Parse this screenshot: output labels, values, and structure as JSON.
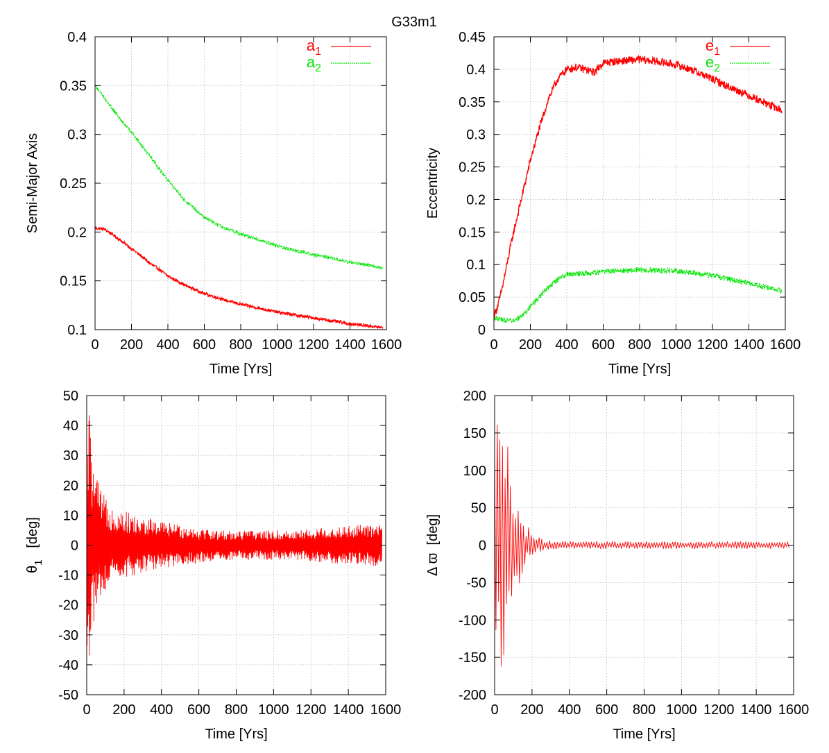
{
  "title": "G33m1",
  "colors": {
    "series_1": "#ff0000",
    "series_2": "#00e600"
  },
  "chart_data": [
    {
      "id": "panel-semi-major-axis",
      "type": "line",
      "title": "",
      "xlabel": "Time [Yrs]",
      "ylabel": "Semi-Major Axis",
      "xlim": [
        0,
        1600
      ],
      "ylim": [
        0.1,
        0.4
      ],
      "xticks": [
        0,
        200,
        400,
        600,
        800,
        1000,
        1200,
        1400,
        1600
      ],
      "yticks": [
        0.1,
        0.15,
        0.2,
        0.25,
        0.3,
        0.35,
        0.4
      ],
      "ytick_labels": [
        "0.1",
        "0.15",
        "0.2",
        "0.25",
        "0.3",
        "0.35",
        "0.4"
      ],
      "grid": true,
      "legend": "top-right",
      "series": [
        {
          "name": "a1",
          "label_main": "a",
          "label_sub": "1",
          "color": "#ff0000",
          "style": "solid",
          "noise": 0.0015,
          "noise_period": 0,
          "x": [
            0,
            50,
            100,
            150,
            200,
            250,
            300,
            350,
            400,
            500,
            600,
            700,
            800,
            900,
            1000,
            1100,
            1200,
            1300,
            1400,
            1500,
            1580
          ],
          "y": [
            0.204,
            0.203,
            0.197,
            0.19,
            0.183,
            0.176,
            0.168,
            0.162,
            0.155,
            0.145,
            0.137,
            0.131,
            0.126,
            0.122,
            0.118,
            0.115,
            0.112,
            0.109,
            0.106,
            0.104,
            0.102
          ]
        },
        {
          "name": "a2",
          "label_main": "a",
          "label_sub": "2",
          "color": "#00e600",
          "style": "dotted",
          "noise": 0.0015,
          "noise_period": 0,
          "x": [
            0,
            50,
            100,
            150,
            200,
            250,
            300,
            350,
            400,
            500,
            600,
            700,
            800,
            900,
            1000,
            1100,
            1200,
            1300,
            1400,
            1500,
            1580
          ],
          "y": [
            0.35,
            0.338,
            0.325,
            0.313,
            0.302,
            0.29,
            0.278,
            0.265,
            0.253,
            0.231,
            0.215,
            0.205,
            0.198,
            0.192,
            0.186,
            0.181,
            0.177,
            0.173,
            0.169,
            0.166,
            0.163
          ]
        }
      ]
    },
    {
      "id": "panel-eccentricity",
      "type": "line",
      "title": "",
      "xlabel": "Time [Yrs]",
      "ylabel": "Eccentricity",
      "xlim": [
        0,
        1600
      ],
      "ylim": [
        0,
        0.45
      ],
      "xticks": [
        0,
        200,
        400,
        600,
        800,
        1000,
        1200,
        1400,
        1600
      ],
      "yticks": [
        0,
        0.05,
        0.1,
        0.15,
        0.2,
        0.25,
        0.3,
        0.35,
        0.4,
        0.45
      ],
      "ytick_labels": [
        "0",
        "0.05",
        "0.1",
        "0.15",
        "0.2",
        "0.25",
        "0.3",
        "0.35",
        "0.4",
        "0.45"
      ],
      "grid": true,
      "legend": "top-right",
      "series": [
        {
          "name": "e1",
          "label_main": "e",
          "label_sub": "1",
          "color": "#ff0000",
          "style": "solid",
          "noise": 0.006,
          "noise_period": 0,
          "x": [
            0,
            25,
            50,
            100,
            150,
            200,
            250,
            300,
            350,
            400,
            450,
            500,
            550,
            600,
            700,
            800,
            900,
            1000,
            1100,
            1200,
            1300,
            1400,
            1500,
            1580
          ],
          "y": [
            0.02,
            0.04,
            0.07,
            0.14,
            0.2,
            0.26,
            0.31,
            0.355,
            0.385,
            0.4,
            0.403,
            0.4,
            0.395,
            0.41,
            0.413,
            0.415,
            0.412,
            0.407,
            0.398,
            0.385,
            0.372,
            0.36,
            0.347,
            0.337
          ]
        },
        {
          "name": "e2",
          "label_main": "e",
          "label_sub": "2",
          "color": "#00e600",
          "style": "dotted",
          "noise": 0.004,
          "noise_period": 0,
          "x": [
            0,
            50,
            100,
            150,
            200,
            250,
            300,
            350,
            400,
            500,
            600,
            700,
            800,
            900,
            1000,
            1100,
            1200,
            1300,
            1400,
            1500,
            1580
          ],
          "y": [
            0.018,
            0.015,
            0.012,
            0.02,
            0.035,
            0.05,
            0.065,
            0.077,
            0.085,
            0.086,
            0.089,
            0.091,
            0.092,
            0.091,
            0.09,
            0.087,
            0.083,
            0.077,
            0.071,
            0.065,
            0.06
          ]
        }
      ]
    },
    {
      "id": "panel-theta1",
      "type": "line",
      "title": "",
      "xlabel": "Time [Yrs]",
      "ylabel_main": "θ",
      "ylabel_sub": "1",
      "ylabel_unit": "[deg]",
      "xlim": [
        0,
        1600
      ],
      "ylim": [
        -50,
        50
      ],
      "xticks": [
        0,
        200,
        400,
        600,
        800,
        1000,
        1200,
        1400,
        1600
      ],
      "yticks": [
        -50,
        -40,
        -30,
        -20,
        -10,
        0,
        10,
        20,
        30,
        40,
        50
      ],
      "ytick_labels": [
        "-50",
        "-40",
        "-30",
        "-20",
        "-10",
        "0",
        "10",
        "20",
        "30",
        "40",
        "50"
      ],
      "grid": true,
      "legend": "none",
      "series": [
        {
          "name": "theta1",
          "color": "#ff0000",
          "style": "solid",
          "oscillation_period": 4,
          "envelope": {
            "x": [
              0,
              10,
              20,
              30,
              50,
              80,
              100,
              150,
              200,
              250,
              300,
              350,
              400,
              500,
              600,
              700,
              800,
              900,
              1000,
              1100,
              1200,
              1300,
              1400,
              1500,
              1580
            ],
            "upper": [
              38,
              46,
              44,
              30,
              24,
              18,
              16,
              13,
              12,
              10,
              9,
              9,
              8,
              7,
              6,
              5,
              5,
              5,
              5,
              5,
              5.5,
              6,
              6.5,
              7,
              7
            ],
            "lower": [
              -38,
              -40,
              -38,
              -30,
              -20,
              -16,
              -15,
              -12,
              -11,
              -10,
              -9,
              -9,
              -8,
              -7,
              -6,
              -5,
              -5,
              -5,
              -5,
              -5,
              -5.5,
              -6,
              -6.5,
              -7,
              -7
            ]
          }
        }
      ]
    },
    {
      "id": "panel-delta-varpi",
      "type": "line",
      "title": "",
      "xlabel": "Time [Yrs]",
      "ylabel_main": "Δ ϖ",
      "ylabel_sub": "",
      "ylabel_unit": "[deg]",
      "xlim": [
        0,
        1600
      ],
      "ylim": [
        -200,
        200
      ],
      "xticks": [
        0,
        200,
        400,
        600,
        800,
        1000,
        1200,
        1400,
        1600
      ],
      "yticks": [
        -200,
        -150,
        -100,
        -50,
        0,
        50,
        100,
        150,
        200
      ],
      "ytick_labels": [
        "-200",
        "-150",
        "-100",
        "-50",
        "0",
        "50",
        "100",
        "150",
        "200"
      ],
      "grid": true,
      "legend": "none",
      "series": [
        {
          "name": "delta_varpi",
          "color": "#ff0000",
          "style": "solid",
          "oscillation_period": 14,
          "envelope": {
            "x": [
              0,
              20,
              40,
              60,
              80,
              100,
              120,
              150,
              180,
              220,
              260,
              300,
              400,
              500,
              600,
              800,
              1000,
              1200,
              1400,
              1580
            ],
            "upper": [
              140,
              170,
              168,
              165,
              155,
              80,
              60,
              40,
              25,
              12,
              8,
              6,
              5,
              5,
              5,
              5,
              5,
              5,
              5,
              5
            ],
            "lower": [
              -140,
              -178,
              -175,
              -170,
              -150,
              -80,
              -60,
              -40,
              -25,
              -12,
              -8,
              -6,
              -5,
              -5,
              -5,
              -5,
              -5,
              -5,
              -5,
              -5
            ]
          }
        }
      ]
    }
  ]
}
